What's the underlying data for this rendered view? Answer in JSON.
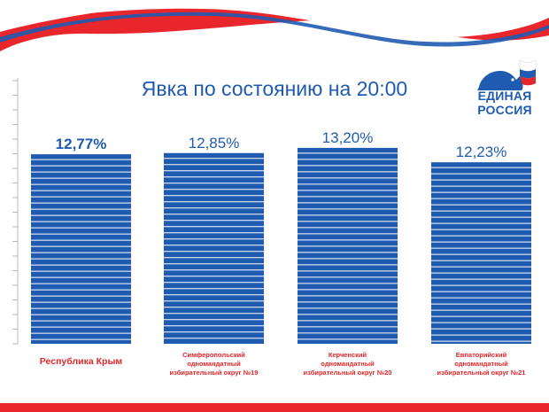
{
  "brand": {
    "line1": "ЕДИНАЯ",
    "line2": "РОССИЯ",
    "colors": {
      "blue": "#1f5bb0",
      "red": "#e3262a",
      "white": "#ffffff"
    }
  },
  "chart_data": {
    "type": "bar",
    "title": "Явка по состоянию на 20:00",
    "categories": [
      [
        "Республика Крым"
      ],
      [
        "Симферопольский",
        "одномандатный",
        "избирательный округ №19"
      ],
      [
        "Керченский",
        "одномандатный",
        "избирательный округ №20"
      ],
      [
        "Евпаторийский",
        "одномандатный",
        "избирательный округ №21"
      ]
    ],
    "values": [
      12.77,
      12.85,
      13.2,
      12.23
    ],
    "value_labels": [
      "12,77%",
      "12,85%",
      "13,20%",
      "12,23%"
    ],
    "bold_index": 0,
    "ylim": [
      0,
      16
    ],
    "bar_color": "#1f5bb0",
    "label_color": "#e3262a"
  }
}
